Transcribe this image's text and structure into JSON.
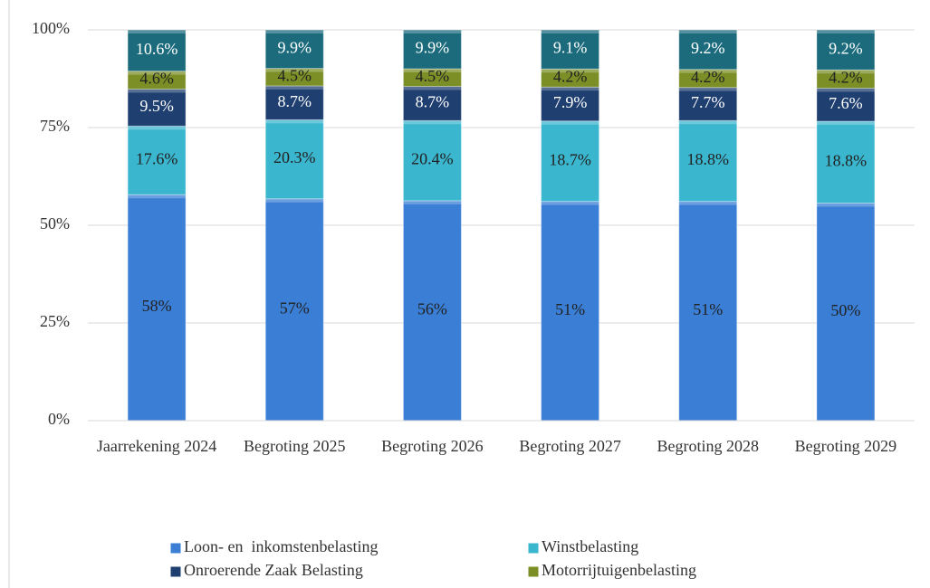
{
  "chart_data": {
    "type": "bar",
    "stacking": "percent",
    "categories": [
      "Jaarrekening 2024",
      "Begroting 2025",
      "Begroting 2026",
      "Begroting 2027",
      "Begroting 2028",
      "Begroting 2029"
    ],
    "series": [
      {
        "name": "Loon- en  inkomstenbelasting",
        "color": "#3a7fd5",
        "values": [
          58,
          57,
          56,
          51,
          51,
          50
        ],
        "value_labels": [
          "58%",
          "57%",
          "56%",
          "51%",
          "51%",
          "50%"
        ]
      },
      {
        "name": "Winstbelasting",
        "color": "#3bb6cf",
        "values": [
          17.6,
          20.3,
          20.4,
          18.7,
          18.8,
          18.8
        ],
        "value_labels": [
          "17.6%",
          "20.3%",
          "20.4%",
          "18.7%",
          "18.8%",
          "18.8%"
        ]
      },
      {
        "name": "Onroerende Zaak Belasting",
        "color": "#1f3f70",
        "values": [
          9.5,
          8.7,
          8.7,
          7.9,
          7.7,
          7.6
        ],
        "value_labels": [
          "9.5%",
          "8.7%",
          "8.7%",
          "7.9%",
          "7.7%",
          "7.6%"
        ]
      },
      {
        "name": "Motorrijtuigenbelasting",
        "color": "#7b8f26",
        "values": [
          4.6,
          4.5,
          4.5,
          4.2,
          4.2,
          4.2
        ],
        "value_labels": [
          "4.6%",
          "4.5%",
          "4.5%",
          "4.2%",
          "4.2%",
          "4.2%"
        ]
      },
      {
        "color": "#1b6b7c",
        "values": [
          10.6,
          9.9,
          9.9,
          9.1,
          9.2,
          9.2
        ],
        "value_labels": [
          "10.6%",
          "9.9%",
          "9.9%",
          "9.1%",
          "9.2%",
          "9.2%"
        ]
      }
    ],
    "ylim": [
      0,
      100
    ],
    "yticks": [
      {
        "value": 0,
        "label": "0%"
      },
      {
        "value": 25,
        "label": "25%"
      },
      {
        "value": 50,
        "label": "50%"
      },
      {
        "value": 75,
        "label": "75%"
      },
      {
        "value": 100,
        "label": "100%"
      }
    ],
    "grid": true,
    "legend": "bottom"
  }
}
